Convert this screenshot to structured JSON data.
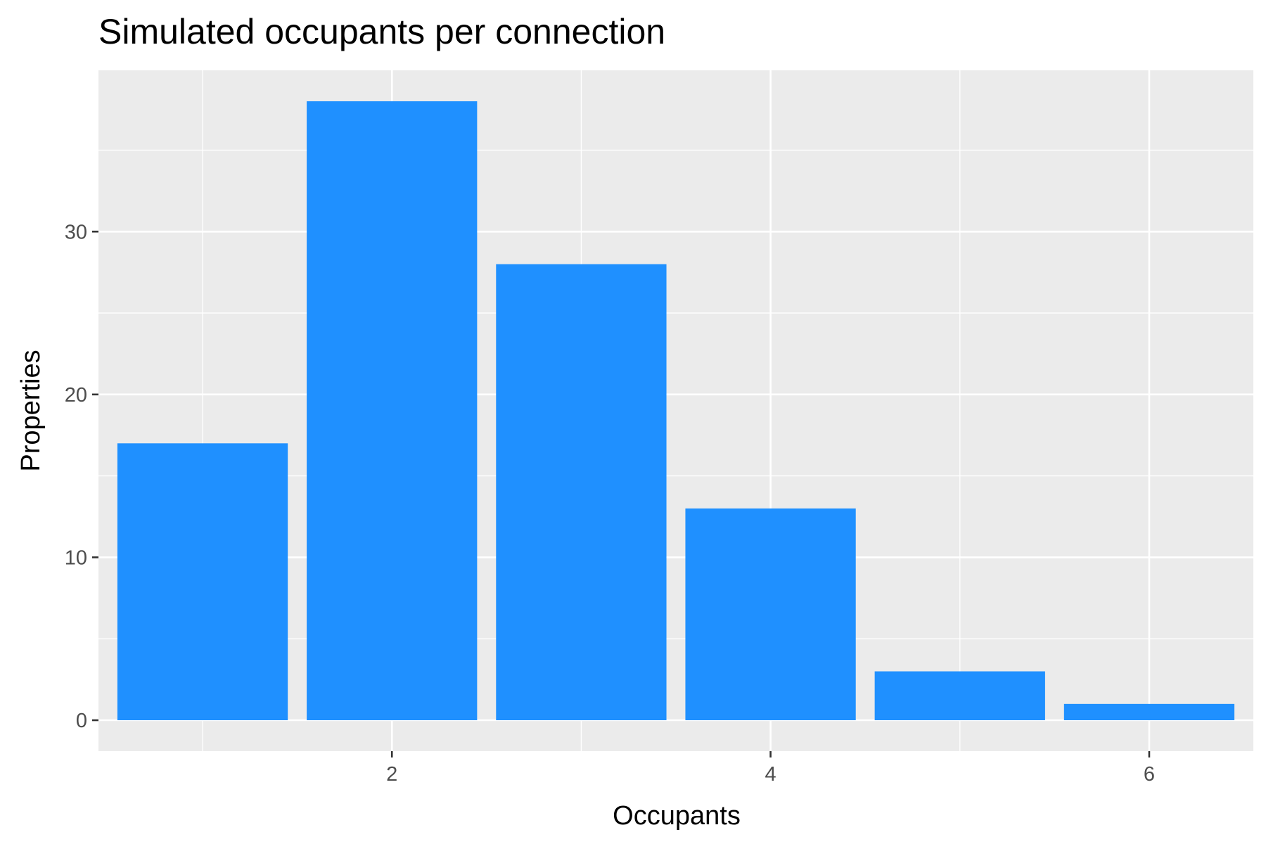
{
  "chart_data": {
    "type": "bar",
    "title": "Simulated occupants per connection",
    "xlabel": "Occupants",
    "ylabel": "Properties",
    "categories": [
      1,
      2,
      3,
      4,
      5,
      6
    ],
    "values": [
      17,
      38,
      28,
      13,
      3,
      1
    ],
    "xlim": [
      0.45,
      6.55
    ],
    "ylim": [
      -1.9,
      39.9
    ],
    "x_ticks": [
      2,
      4,
      6
    ],
    "y_ticks": [
      0,
      10,
      20,
      30
    ],
    "grid": true,
    "bar_color": "#1f90ff",
    "panel_color": "#ebebeb",
    "grid_color": "#ffffff"
  }
}
